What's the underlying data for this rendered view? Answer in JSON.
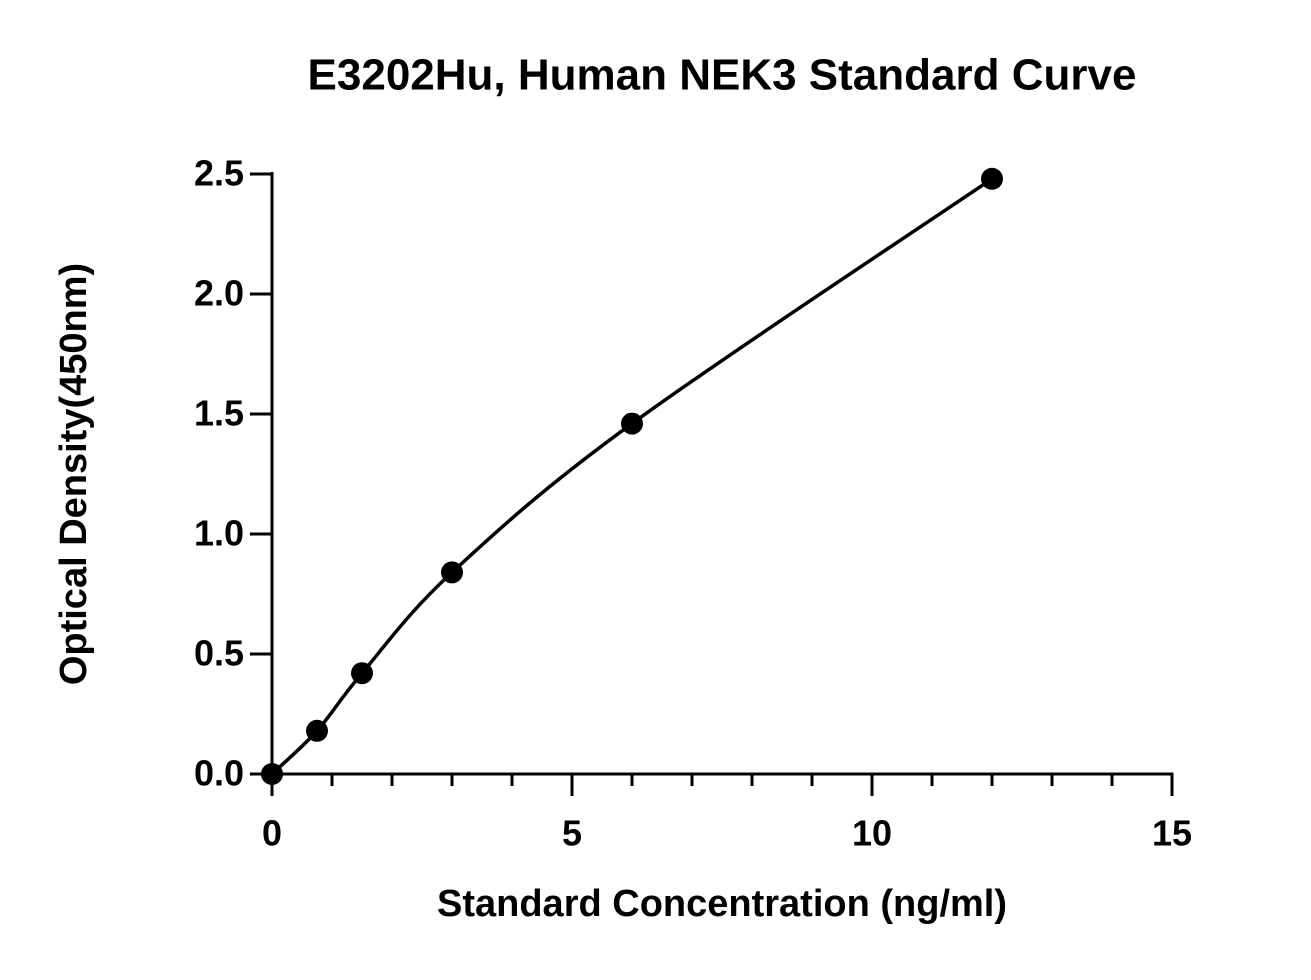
{
  "chart_data": {
    "type": "line",
    "title": "E3202Hu, Human NEK3 Standard Curve",
    "x_label": "Standard Concentration (ng/ml)",
    "y_label": "Optical Density(450nm)",
    "smooth": true,
    "markers": true,
    "x": [
      0,
      0.75,
      1.5,
      3,
      6,
      12
    ],
    "series": [
      {
        "name": "NEK3",
        "color": "#000000",
        "values": [
          0,
          0.18,
          0.42,
          0.84,
          1.46,
          2.48
        ]
      }
    ],
    "xlim": [
      0,
      15
    ],
    "xticks": [
      0,
      5,
      10,
      15
    ],
    "x_minor_ticks": [
      1,
      2,
      3,
      4,
      6,
      7,
      8,
      9,
      11,
      12,
      13,
      14
    ],
    "ylim": [
      0,
      2.5
    ],
    "yticks": [
      {
        "value": 0,
        "label": "0.0"
      },
      0.5,
      {
        "value": 1,
        "label": "1.0"
      },
      1.5,
      {
        "value": 2,
        "label": "2.0"
      },
      2.5
    ],
    "grid": false
  }
}
